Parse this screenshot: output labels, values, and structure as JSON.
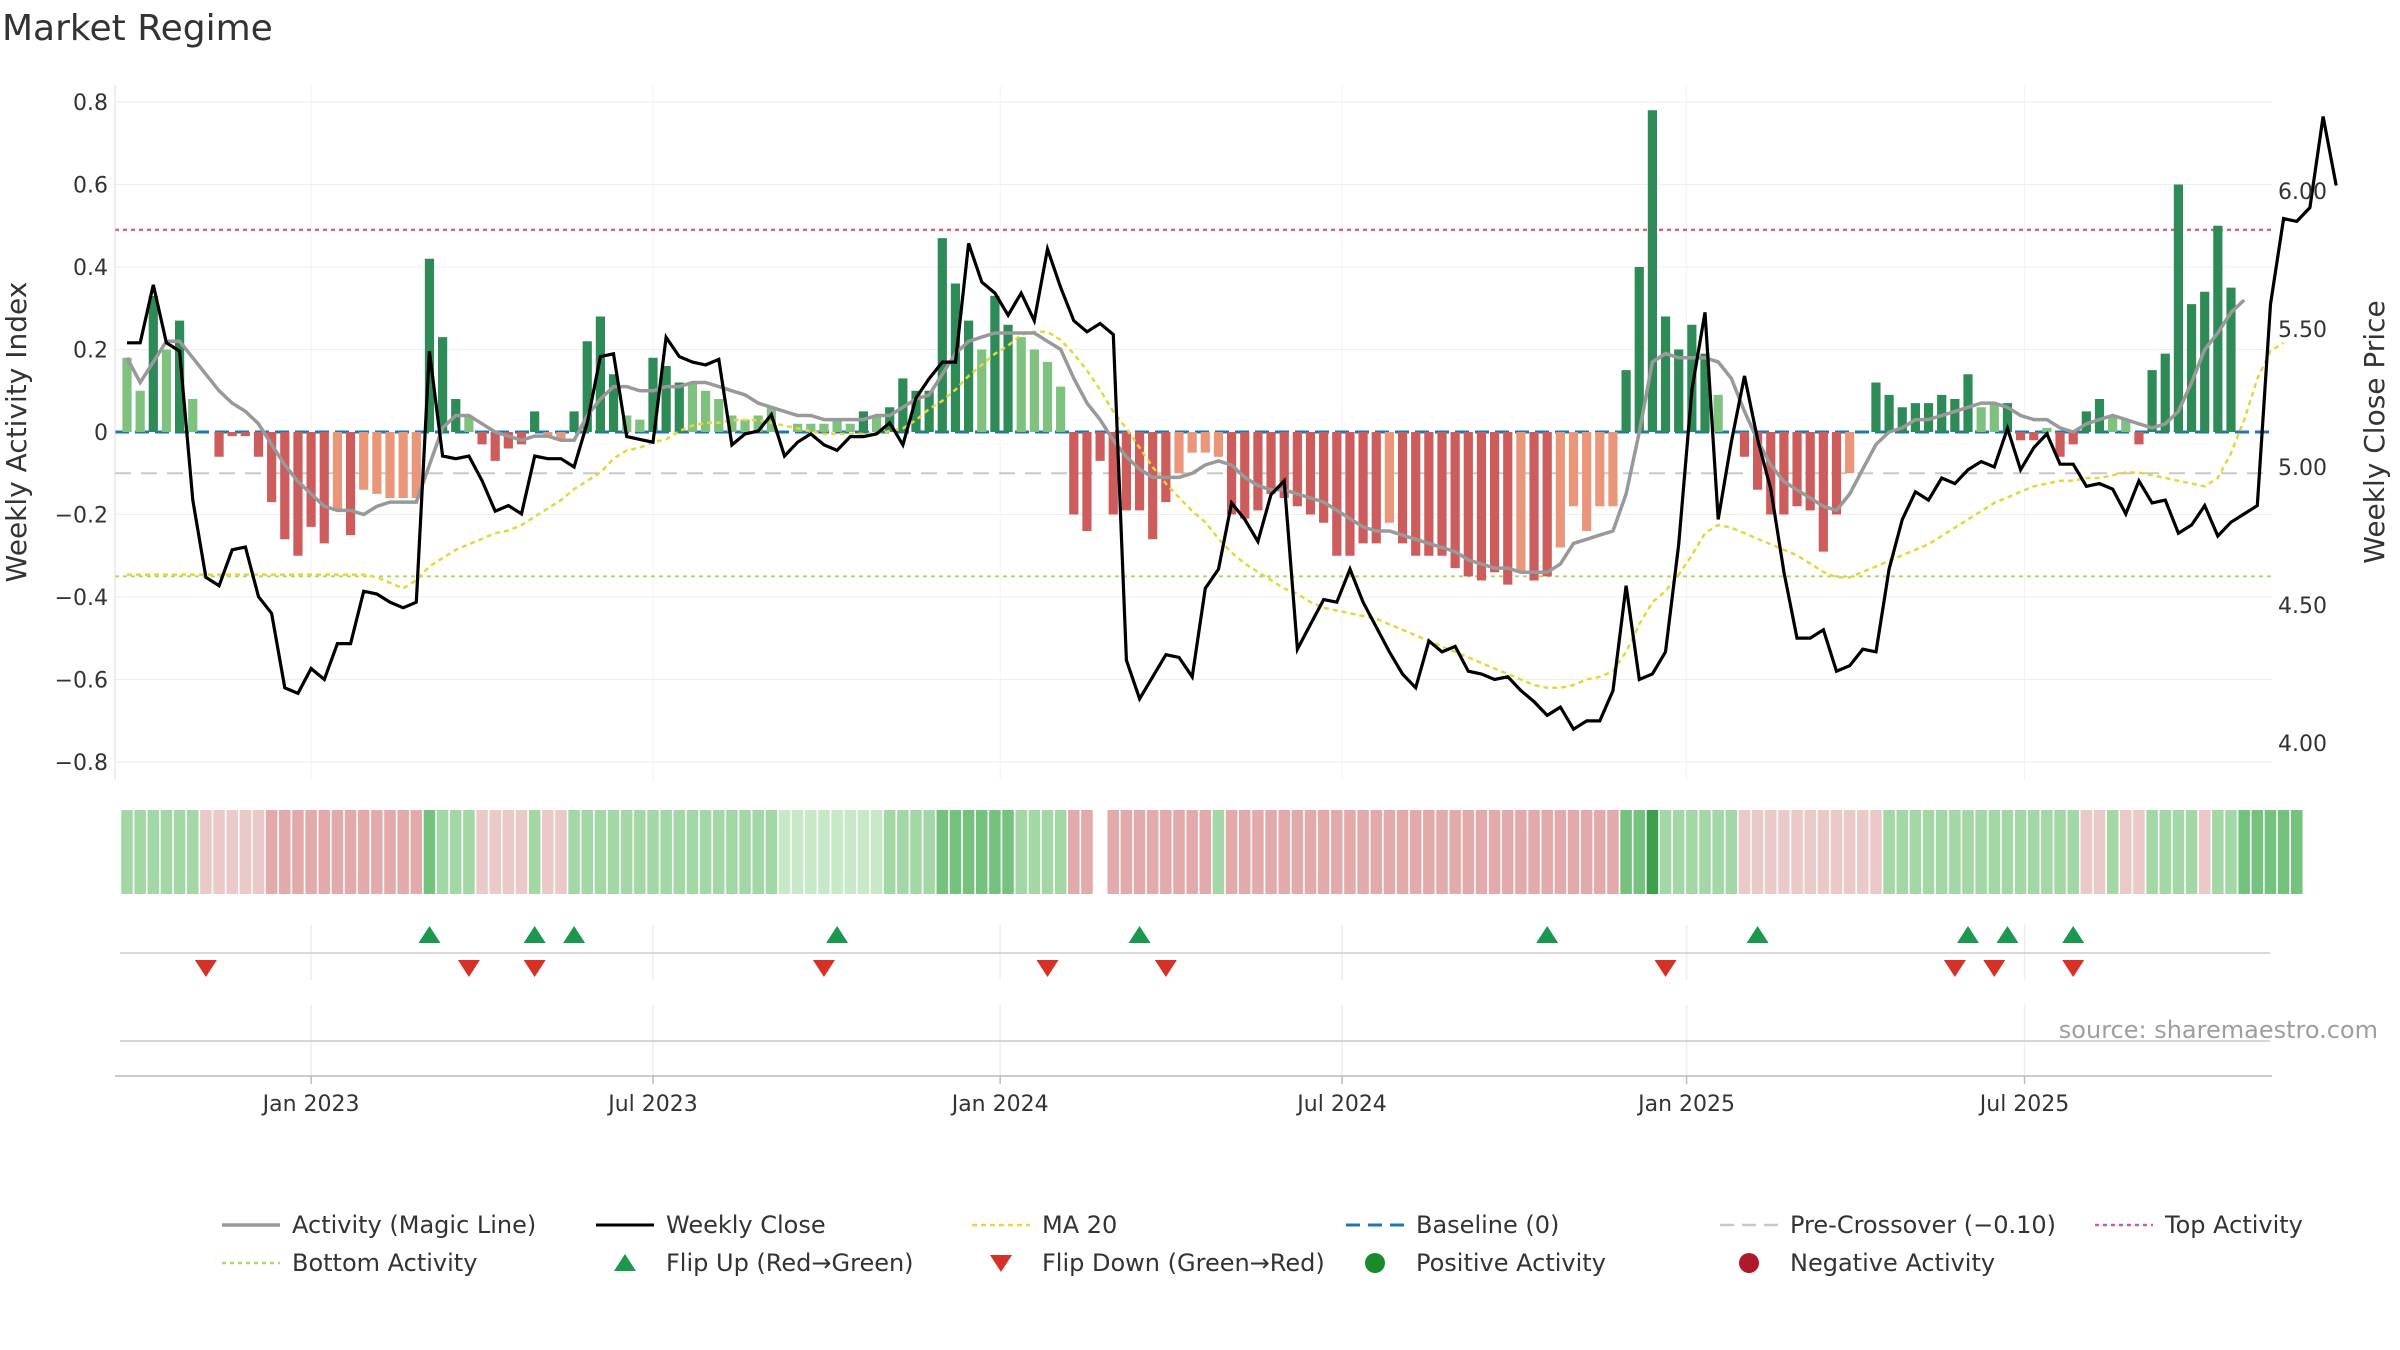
{
  "chart_data": {
    "type": "bar",
    "title": "Market Regime",
    "source": "source: sharemaestro.com",
    "ylabel_left": "Weekly Activity Index",
    "ylabel_right": "Weekly Close Price",
    "left_ylim": [
      -0.8,
      0.85
    ],
    "right_ylim": [
      3.97,
      6.3
    ],
    "left_ticks": [
      0.8,
      0.6,
      0.4,
      0.2,
      0,
      -0.2,
      -0.4,
      -0.6,
      -0.8
    ],
    "left_tick_labels": [
      "0.8",
      "0.6",
      "0.4",
      "0.2",
      "0",
      "−0.2",
      "−0.4",
      "−0.6",
      "−0.8"
    ],
    "right_ticks": [
      6.0,
      5.5,
      5.0,
      4.5,
      4.0
    ],
    "right_tick_labels": [
      "6.00",
      "5.50",
      "5.00",
      "4.50",
      "4.00"
    ],
    "x_tick_labels": [
      "Jan 2023",
      "Jul 2023",
      "Jan 2024",
      "Jul 2024",
      "Jan 2025",
      "Jul 2025"
    ],
    "x_tick_weeks": [
      14,
      40,
      66.4,
      92.4,
      118.6,
      144.3
    ],
    "first_week": "2022-10-03",
    "levels": {
      "top": 0.49,
      "bottom": -0.35,
      "pre_crossover": -0.1,
      "baseline": 0
    },
    "colors": {
      "pos_strong": "#2e8b57",
      "pos_light": "#7fc17f",
      "neg_strong": "#cd5c5c",
      "neg_light": "#e9967a",
      "close": "#000000",
      "magic": "#999999",
      "ma20": "#e8d53c",
      "baseline": "#1f77b4",
      "pre": "#c8c8c8",
      "top": "#d9607a",
      "bottom": "#aed66b",
      "flip_up": "#1a9850",
      "flip_down": "#d73027"
    },
    "series": [
      {
        "name": "Activity",
        "values": [
          0.18,
          0.1,
          0.33,
          0.2,
          0.27,
          0.08,
          0,
          -0.06,
          -0.01,
          -0.01,
          -0.06,
          -0.17,
          -0.26,
          -0.3,
          -0.23,
          -0.27,
          -0.19,
          -0.25,
          -0.14,
          -0.15,
          -0.16,
          -0.16,
          -0.16,
          0.42,
          0.23,
          0.08,
          0.04,
          -0.03,
          -0.07,
          -0.04,
          -0.03,
          0.05,
          -0.01,
          -0.02,
          0.05,
          0.22,
          0.28,
          0.14,
          0.04,
          0.03,
          0.18,
          0.16,
          0.12,
          0.12,
          0.1,
          0.08,
          0.04,
          0.03,
          0.04,
          0.06,
          0,
          0.02,
          0.02,
          0.02,
          0.03,
          0.02,
          0.05,
          0.04,
          0.06,
          0.13,
          0.1,
          0.1,
          0.47,
          0.36,
          0.27,
          0.2,
          0.33,
          0.26,
          0.23,
          0.2,
          0.17,
          0.11,
          -0.2,
          -0.24,
          -0.07,
          -0.2,
          -0.19,
          -0.19,
          -0.26,
          -0.17,
          -0.1,
          -0.05,
          -0.05,
          -0.06,
          -0.2,
          -0.21,
          -0.19,
          -0.15,
          -0.16,
          -0.18,
          -0.2,
          -0.22,
          -0.3,
          -0.3,
          -0.27,
          -0.27,
          -0.22,
          -0.27,
          -0.3,
          -0.3,
          -0.3,
          -0.33,
          -0.35,
          -0.36,
          -0.34,
          -0.37,
          -0.34,
          -0.36,
          -0.35,
          -0.28,
          -0.18,
          -0.24,
          -0.18,
          -0.18,
          0.15,
          0.4,
          0.78,
          0.28,
          0.2,
          0.26,
          0.19,
          0.09,
          0,
          -0.06,
          -0.14,
          -0.2,
          -0.2,
          -0.18,
          -0.19,
          -0.29,
          -0.2,
          -0.1,
          0,
          0.12,
          0.09,
          0.06,
          0.07,
          0.07,
          0.09,
          0.08,
          0.14,
          0.06,
          0.07,
          0.07,
          -0.02,
          -0.02,
          0.01,
          -0.06,
          -0.03,
          0.05,
          0.08,
          0.04,
          0.03,
          -0.03,
          0.15,
          0.19,
          0.6,
          0.31,
          0.34,
          0.5,
          0.35
        ]
      },
      {
        "name": "Activity (Magic Line)",
        "values": [
          0.18,
          0.12,
          0.17,
          0.22,
          0.22,
          0.18,
          0.14,
          0.1,
          0.07,
          0.05,
          0.02,
          -0.03,
          -0.08,
          -0.12,
          -0.15,
          -0.18,
          -0.19,
          -0.19,
          -0.2,
          -0.18,
          -0.17,
          -0.17,
          -0.17,
          -0.08,
          0.01,
          0.04,
          0.04,
          0.02,
          0,
          -0.01,
          -0.02,
          -0.01,
          -0.01,
          -0.02,
          -0.02,
          0.04,
          0.08,
          0.11,
          0.11,
          0.1,
          0.1,
          0.11,
          0.11,
          0.12,
          0.12,
          0.11,
          0.1,
          0.09,
          0.07,
          0.06,
          0.05,
          0.04,
          0.04,
          0.03,
          0.03,
          0.03,
          0.03,
          0.04,
          0.04,
          0.06,
          0.08,
          0.09,
          0.14,
          0.19,
          0.22,
          0.23,
          0.24,
          0.24,
          0.24,
          0.24,
          0.22,
          0.2,
          0.13,
          0.07,
          0.03,
          -0.02,
          -0.06,
          -0.09,
          -0.11,
          -0.11,
          -0.11,
          -0.1,
          -0.08,
          -0.07,
          -0.08,
          -0.11,
          -0.13,
          -0.14,
          -0.14,
          -0.15,
          -0.16,
          -0.17,
          -0.19,
          -0.21,
          -0.23,
          -0.24,
          -0.24,
          -0.25,
          -0.26,
          -0.27,
          -0.28,
          -0.29,
          -0.31,
          -0.32,
          -0.33,
          -0.33,
          -0.34,
          -0.34,
          -0.34,
          -0.32,
          -0.27,
          -0.26,
          -0.25,
          -0.24,
          -0.15,
          0,
          0.17,
          0.19,
          0.18,
          0.18,
          0.18,
          0.17,
          0.13,
          0.05,
          -0.02,
          -0.08,
          -0.12,
          -0.14,
          -0.16,
          -0.18,
          -0.19,
          -0.15,
          -0.09,
          -0.03,
          0,
          0.01,
          0.03,
          0.03,
          0.04,
          0.05,
          0.06,
          0.07,
          0.07,
          0.06,
          0.04,
          0.03,
          0.03,
          0.01,
          0,
          0.02,
          0.03,
          0.04,
          0.03,
          0.02,
          0.01,
          0.02,
          0.05,
          0.12,
          0.2,
          0.24,
          0.29,
          0.32
        ]
      },
      {
        "name": "Weekly Close",
        "values": [
          5.45,
          5.45,
          5.66,
          5.45,
          5.42,
          4.88,
          4.6,
          4.57,
          4.7,
          4.71,
          4.53,
          4.47,
          4.2,
          4.18,
          4.27,
          4.23,
          4.36,
          4.36,
          4.55,
          4.54,
          4.51,
          4.49,
          4.51,
          5.42,
          5.04,
          5.03,
          5.04,
          4.95,
          4.84,
          4.86,
          4.83,
          5.04,
          5.03,
          5.03,
          5.0,
          5.16,
          5.4,
          5.41,
          5.11,
          5.1,
          5.09,
          5.47,
          5.4,
          5.38,
          5.37,
          5.39,
          5.08,
          5.12,
          5.13,
          5.19,
          5.04,
          5.09,
          5.12,
          5.08,
          5.06,
          5.11,
          5.11,
          5.12,
          5.16,
          5.08,
          5.25,
          5.32,
          5.38,
          5.38,
          5.81,
          5.67,
          5.63,
          5.55,
          5.63,
          5.53,
          5.79,
          5.65,
          5.53,
          5.49,
          5.52,
          5.48,
          4.3,
          4.16,
          4.24,
          4.32,
          4.31,
          4.24,
          4.56,
          4.63,
          4.87,
          4.81,
          4.73,
          4.9,
          4.95,
          4.34,
          4.43,
          4.52,
          4.51,
          4.63,
          4.51,
          4.42,
          4.33,
          4.25,
          4.2,
          4.37,
          4.33,
          4.35,
          4.26,
          4.25,
          4.23,
          4.24,
          4.19,
          4.15,
          4.1,
          4.13,
          4.05,
          4.08,
          4.08,
          4.19,
          4.57,
          4.23,
          4.25,
          4.33,
          4.72,
          5.28,
          5.56,
          4.81,
          5.09,
          5.33,
          5.1,
          4.92,
          4.62,
          4.38,
          4.38,
          4.41,
          4.26,
          4.28,
          4.34,
          4.33,
          4.63,
          4.81,
          4.91,
          4.88,
          4.96,
          4.94,
          4.99,
          5.02,
          5.0,
          5.14,
          4.99,
          5.07,
          5.12,
          5.01,
          5.01,
          4.93,
          4.94,
          4.92,
          4.83,
          4.95,
          4.87,
          4.88,
          4.76,
          4.79,
          4.86,
          4.75,
          4.8,
          4.83,
          4.86,
          5.59,
          5.9,
          5.89,
          5.94,
          6.27,
          6.02
        ]
      },
      {
        "name": "MA 20",
        "values": [
          4.61,
          4.61,
          4.61,
          4.61,
          4.61,
          4.61,
          4.61,
          4.61,
          4.61,
          4.61,
          4.61,
          4.61,
          4.61,
          4.61,
          4.61,
          4.61,
          4.61,
          4.61,
          4.61,
          4.6,
          4.58,
          4.56,
          4.59,
          4.64,
          4.67,
          4.7,
          4.72,
          4.74,
          4.76,
          4.77,
          4.79,
          4.82,
          4.85,
          4.88,
          4.92,
          4.95,
          4.98,
          5.03,
          5.06,
          5.07,
          5.09,
          5.1,
          5.13,
          5.15,
          5.16,
          5.16,
          5.17,
          5.17,
          5.17,
          5.16,
          5.15,
          5.14,
          5.13,
          5.12,
          5.12,
          5.12,
          5.12,
          5.12,
          5.13,
          5.14,
          5.17,
          5.21,
          5.24,
          5.28,
          5.33,
          5.37,
          5.41,
          5.44,
          5.48,
          5.49,
          5.49,
          5.46,
          5.41,
          5.35,
          5.28,
          5.2,
          5.14,
          5.07,
          5.0,
          4.94,
          4.89,
          4.84,
          4.8,
          4.74,
          4.69,
          4.65,
          4.62,
          4.59,
          4.56,
          4.54,
          4.51,
          4.49,
          4.48,
          4.47,
          4.46,
          4.45,
          4.43,
          4.41,
          4.39,
          4.37,
          4.35,
          4.33,
          4.31,
          4.29,
          4.27,
          4.25,
          4.23,
          4.21,
          4.2,
          4.2,
          4.21,
          4.23,
          4.24,
          4.26,
          4.33,
          4.43,
          4.51,
          4.55,
          4.61,
          4.68,
          4.76,
          4.79,
          4.78,
          4.76,
          4.74,
          4.72,
          4.7,
          4.68,
          4.65,
          4.62,
          4.6,
          4.6,
          4.62,
          4.64,
          4.66,
          4.68,
          4.7,
          4.72,
          4.75,
          4.78,
          4.81,
          4.84,
          4.87,
          4.89,
          4.91,
          4.93,
          4.94,
          4.95,
          4.95,
          4.96,
          4.96,
          4.97,
          4.98,
          4.98,
          4.97,
          4.96,
          4.95,
          4.94,
          4.93,
          4.96,
          5.05,
          5.17,
          5.32,
          5.42,
          5.45
        ]
      }
    ],
    "regime_strip": [
      2,
      2,
      2,
      2,
      2,
      2,
      -2,
      -2,
      -2,
      -2,
      -2,
      -3,
      -3,
      -3,
      -3,
      -3,
      -3,
      -3,
      -3,
      -3,
      -3,
      -3,
      -3,
      3,
      2,
      2,
      2,
      -2,
      -2,
      -2,
      -2,
      2,
      -2,
      -2,
      2,
      2,
      2,
      2,
      2,
      2,
      2,
      2,
      2,
      2,
      2,
      2,
      2,
      2,
      2,
      2,
      1,
      1,
      1,
      1,
      1,
      1,
      1,
      1,
      2,
      2,
      2,
      2,
      3,
      3,
      3,
      3,
      3,
      3,
      2,
      2,
      2,
      2,
      -3,
      -3,
      0,
      -3,
      -3,
      -3,
      -3,
      -3,
      -3,
      -3,
      -3,
      2,
      -3,
      -3,
      -3,
      -3,
      -3,
      -3,
      -3,
      -3,
      -3,
      -3,
      -3,
      -3,
      -3,
      -3,
      -3,
      -3,
      -3,
      -3,
      -3,
      -3,
      -3,
      -3,
      -3,
      -3,
      -3,
      -3,
      -3,
      -3,
      -3,
      -3,
      3,
      3,
      4,
      2,
      2,
      2,
      2,
      2,
      2,
      -2,
      -2,
      -2,
      -2,
      -2,
      -2,
      -2,
      -2,
      -2,
      -2,
      -2,
      2,
      2,
      2,
      2,
      2,
      2,
      2,
      2,
      2,
      2,
      2,
      2,
      2,
      2,
      2,
      -2,
      -2,
      2,
      -2,
      -2,
      2,
      2,
      2,
      2,
      -2,
      2,
      2,
      3,
      3,
      3,
      3,
      3
    ],
    "flip_up_weeks": [
      23,
      31,
      34,
      54,
      77,
      108,
      124,
      140,
      143,
      148
    ],
    "flip_down_weeks": [
      6,
      26,
      31,
      53,
      70,
      79,
      117,
      139,
      142,
      148
    ]
  },
  "legend": [
    {
      "label": "Activity (Magic Line)",
      "icon": "solid-gray-line"
    },
    {
      "label": "Weekly Close",
      "icon": "solid-black-line"
    },
    {
      "label": "MA 20",
      "icon": "dotted-yellow-line"
    },
    {
      "label": "Baseline (0)",
      "icon": "dashed-blue-line"
    },
    {
      "label": "Pre-Crossover (−0.10)",
      "icon": "dashed-gray-line"
    },
    {
      "label": "Top Activity",
      "icon": "dotted-red-line"
    },
    {
      "label": "Bottom Activity",
      "icon": "dotted-green-line"
    },
    {
      "label": "Flip Up (Red→Green)",
      "icon": "triangle-up-green"
    },
    {
      "label": "Flip Down (Green→Red)",
      "icon": "triangle-down-red"
    },
    {
      "label": "Positive Activity",
      "icon": "circle-green"
    },
    {
      "label": "Negative Activity",
      "icon": "circle-red"
    }
  ]
}
